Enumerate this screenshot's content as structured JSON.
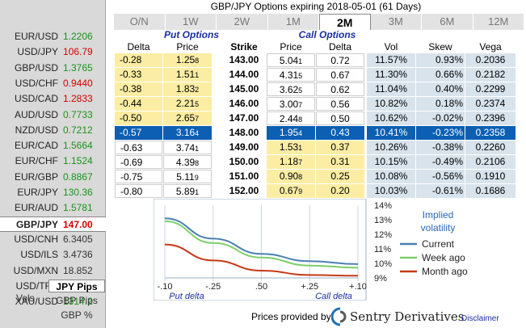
{
  "title": "GBP/JPY Options expiring 2018-05-01 (61 Days)",
  "tabs": [
    {
      "label": "O/N",
      "active": false
    },
    {
      "label": "1W",
      "active": false
    },
    {
      "label": "2W",
      "active": false
    },
    {
      "label": "1M",
      "active": false
    },
    {
      "label": "2M",
      "active": true
    },
    {
      "label": "3M",
      "active": false
    },
    {
      "label": "6M",
      "active": false
    },
    {
      "label": "12M",
      "active": false
    }
  ],
  "sidebar": {
    "pairs": [
      {
        "name": "EUR/USD",
        "rate": "1.2206",
        "color": "green",
        "selected": false
      },
      {
        "name": "USD/JPY",
        "rate": "106.79",
        "color": "red",
        "selected": false
      },
      {
        "name": "GBP/USD",
        "rate": "1.3765",
        "color": "green",
        "selected": false
      },
      {
        "name": "USD/CHF",
        "rate": "0.9440",
        "color": "red",
        "selected": false
      },
      {
        "name": "USD/CAD",
        "rate": "1.2833",
        "color": "red",
        "selected": false
      },
      {
        "name": "AUD/USD",
        "rate": "0.7733",
        "color": "green",
        "selected": false
      },
      {
        "name": "NZD/USD",
        "rate": "0.7212",
        "color": "green",
        "selected": false
      },
      {
        "name": "EUR/CAD",
        "rate": "1.5664",
        "color": "green",
        "selected": false
      },
      {
        "name": "EUR/CHF",
        "rate": "1.1524",
        "color": "green",
        "selected": false
      },
      {
        "name": "EUR/GBP",
        "rate": "0.8867",
        "color": "green",
        "selected": false
      },
      {
        "name": "EUR/JPY",
        "rate": "130.36",
        "color": "green",
        "selected": false
      },
      {
        "name": "EUR/AUD",
        "rate": "1.5781",
        "color": "green",
        "selected": false
      },
      {
        "name": "GBP/JPY",
        "rate": "147.00",
        "color": "red",
        "selected": true
      },
      {
        "name": "USD/CNH",
        "rate": "6.3405",
        "color": "gray",
        "selected": false
      },
      {
        "name": "USD/ILS",
        "rate": "3.4736",
        "color": "gray",
        "selected": false
      },
      {
        "name": "USD/MXN",
        "rate": "18.852",
        "color": "gray",
        "selected": false
      },
      {
        "name": "USD/TRY",
        "rate": "3.8033",
        "color": "red",
        "selected": false
      },
      {
        "name": "XAU/USD",
        "rate": "1314.2",
        "color": "green",
        "selected": false
      }
    ],
    "vols_label": "Vols",
    "vols_options": [
      {
        "label": "JPY Pips",
        "active": true
      },
      {
        "label": "GBP Pips",
        "active": false
      },
      {
        "label": "GBP %",
        "active": false
      }
    ]
  },
  "headers": {
    "put_group": "Put Options",
    "call_group": "Call Options",
    "put_delta": "Delta",
    "put_price": "Price",
    "strike": "Strike",
    "call_price": "Price",
    "call_delta": "Delta",
    "vol": "Vol",
    "skew": "Skew",
    "vega": "Vega"
  },
  "rows": [
    {
      "put_delta": "-0.28",
      "put_price": "1.25",
      "put_price_sub": "8",
      "strike": "143.00",
      "call_price": "5.04",
      "call_price_sub": "1",
      "call_delta": "0.72",
      "vol": "11.57%",
      "skew": "0.93%",
      "vega": "0.2036",
      "put_itm": true,
      "call_itm": false,
      "atm": false
    },
    {
      "put_delta": "-0.33",
      "put_price": "1.51",
      "put_price_sub": "1",
      "strike": "144.00",
      "call_price": "4.31",
      "call_price_sub": "5",
      "call_delta": "0.67",
      "vol": "11.30%",
      "skew": "0.66%",
      "vega": "0.2182",
      "put_itm": true,
      "call_itm": false,
      "atm": false
    },
    {
      "put_delta": "-0.38",
      "put_price": "1.83",
      "put_price_sub": "2",
      "strike": "145.00",
      "call_price": "3.62",
      "call_price_sub": "5",
      "call_delta": "0.62",
      "vol": "11.04%",
      "skew": "0.40%",
      "vega": "0.2299",
      "put_itm": true,
      "call_itm": false,
      "atm": false
    },
    {
      "put_delta": "-0.44",
      "put_price": "2.21",
      "put_price_sub": "5",
      "strike": "146.00",
      "call_price": "3.00",
      "call_price_sub": "7",
      "call_delta": "0.56",
      "vol": "10.82%",
      "skew": "0.18%",
      "vega": "0.2374",
      "put_itm": true,
      "call_itm": false,
      "atm": false
    },
    {
      "put_delta": "-0.50",
      "put_price": "2.65",
      "put_price_sub": "7",
      "strike": "147.00",
      "call_price": "2.44",
      "call_price_sub": "8",
      "call_delta": "0.50",
      "vol": "10.62%",
      "skew": "-0.02%",
      "vega": "0.2396",
      "put_itm": true,
      "call_itm": false,
      "atm": false
    },
    {
      "put_delta": "-0.57",
      "put_price": "3.16",
      "put_price_sub": "4",
      "strike": "148.00",
      "call_price": "1.95",
      "call_price_sub": "4",
      "call_delta": "0.43",
      "vol": "10.41%",
      "skew": "-0.23%",
      "vega": "0.2358",
      "put_itm": false,
      "call_itm": true,
      "atm": true
    },
    {
      "put_delta": "-0.63",
      "put_price": "3.74",
      "put_price_sub": "1",
      "strike": "149.00",
      "call_price": "1.53",
      "call_price_sub": "1",
      "call_delta": "0.37",
      "vol": "10.26%",
      "skew": "-0.38%",
      "vega": "0.2260",
      "put_itm": false,
      "call_itm": true,
      "atm": false
    },
    {
      "put_delta": "-0.69",
      "put_price": "4.39",
      "put_price_sub": "8",
      "strike": "150.00",
      "call_price": "1.18",
      "call_price_sub": "7",
      "call_delta": "0.31",
      "vol": "10.15%",
      "skew": "-0.49%",
      "vega": "0.2106",
      "put_itm": false,
      "call_itm": true,
      "atm": false
    },
    {
      "put_delta": "-0.75",
      "put_price": "5.11",
      "put_price_sub": "9",
      "strike": "151.00",
      "call_price": "0.90",
      "call_price_sub": "8",
      "call_delta": "0.25",
      "vol": "10.08%",
      "skew": "-0.56%",
      "vega": "0.1910",
      "put_itm": false,
      "call_itm": true,
      "atm": false
    },
    {
      "put_delta": "-0.80",
      "put_price": "5.89",
      "put_price_sub": "1",
      "strike": "152.00",
      "call_price": "0.67",
      "call_price_sub": "9",
      "call_delta": "0.20",
      "vol": "10.03%",
      "skew": "-0.61%",
      "vega": "0.1686",
      "put_itm": false,
      "call_itm": true,
      "atm": false
    }
  ],
  "chart_data": {
    "type": "line",
    "title": "Implied volatility",
    "x_tick_labels": [
      "-.10",
      "-.25",
      ".50",
      "+.25",
      "+.10"
    ],
    "x_group_labels": [
      "Put delta",
      "Call delta"
    ],
    "x": [
      0,
      1,
      2,
      3,
      4
    ],
    "ylim": [
      9,
      14
    ],
    "y_tick_labels": [
      "14%",
      "13%",
      "12%",
      "11%",
      "10%",
      "9%"
    ],
    "y_ticks": [
      14,
      13,
      12,
      11,
      10,
      9
    ],
    "legend_position": "right",
    "series": [
      {
        "name": "Current",
        "color": "#4a7fb5",
        "values": [
          13.1,
          11.7,
          10.65,
          10.15,
          9.95
        ]
      },
      {
        "name": "Week ago",
        "color": "#7ccf6a",
        "values": [
          12.9,
          11.4,
          10.4,
          9.85,
          9.7
        ]
      },
      {
        "name": "Month ago",
        "color": "#c63a16",
        "values": [
          11.3,
          10.2,
          9.5,
          9.2,
          9.15
        ]
      }
    ]
  },
  "footer": {
    "prices_by": "Prices provided by",
    "provider": "Sentry Derivatives",
    "disclaimer": "Disclaimer"
  }
}
